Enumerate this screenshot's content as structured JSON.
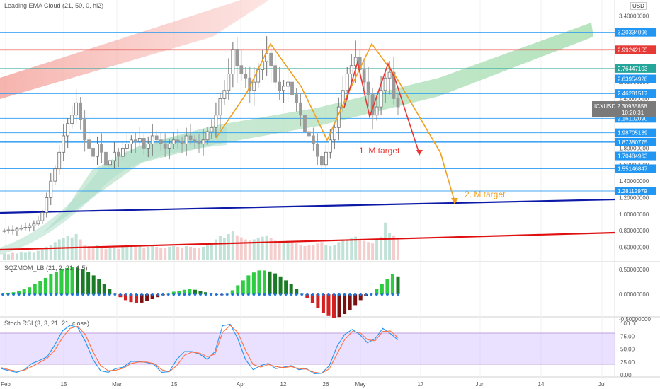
{
  "header": {
    "main_indicator": "Leading EMA Cloud (21, 50, 0, hl2)",
    "currency": "USD",
    "sqzmom_title": "SQZMOM_LB (21, 2, 21, 1.5)",
    "stoch_title": "Stoch RSI (3, 3, 21, 21, close)"
  },
  "colors": {
    "up_candle": "#6f6f6f",
    "down_candle": "#9a9a9a",
    "blue_level": "#2196f3",
    "red_level": "#e53935",
    "trendline_blue": "#0d1aa8",
    "trendline_red": "#e01010",
    "m1_pattern": "#e53935",
    "m2_pattern": "#f0a020",
    "squeeze_up": "#2ecc40",
    "squeeze_down": "#d42020",
    "stoch_k": "#2196f3",
    "stoch_d": "#ff7043",
    "stoch_band": "#d9c6ff"
  },
  "chart_data": [
    {
      "type": "candlestick",
      "symbol": "ICXUSD",
      "title": "Leading EMA Cloud (21, 50, 0, hl2)",
      "ylim": [
        0.45,
        3.45
      ],
      "x_labels": [
        "Feb",
        "15",
        "Mar",
        "15",
        "Apr",
        "12",
        "26",
        "May",
        "17",
        "Jun",
        "14",
        "Jul"
      ],
      "y_ticks": [
        "3.40000000",
        "3.00000000",
        "2.60000000",
        "2.40000000",
        "2.20000000",
        "1.80000000",
        "1.60000000",
        "1.40000000",
        "1.20000000",
        "1.00000000",
        "0.80000000",
        "0.60000000"
      ],
      "horizontal_levels": [
        {
          "value": "3.20334096",
          "color": "blue"
        },
        {
          "value": "2.99242155",
          "color": "red"
        },
        {
          "value": "2.76447103",
          "color": "teal"
        },
        {
          "value": "2.63954928",
          "color": "blue"
        },
        {
          "value": "2.46281517",
          "color": "blue"
        },
        {
          "value": "2.16102090",
          "color": "blue"
        },
        {
          "value": "1.98705139",
          "color": "blue"
        },
        {
          "value": "1.87380775",
          "color": "blue"
        },
        {
          "value": "1.70484963",
          "color": "blue"
        },
        {
          "value": "1.55146847",
          "color": "blue"
        },
        {
          "value": "1.28112979",
          "color": "blue"
        }
      ],
      "current_price": {
        "symbol": "ICXUSD",
        "value": "2.30935858",
        "countdown": "10:20:31"
      },
      "annotations": [
        "1. M target",
        "2. M target"
      ],
      "closes": [
        0.8,
        0.81,
        0.8,
        0.82,
        0.83,
        0.84,
        0.86,
        0.88,
        0.92,
        1.02,
        1.2,
        1.4,
        1.55,
        1.75,
        1.95,
        2.1,
        2.2,
        2.35,
        2.15,
        1.9,
        1.8,
        1.7,
        1.85,
        1.75,
        1.6,
        1.65,
        1.75,
        1.7,
        1.8,
        1.85,
        1.9,
        1.88,
        1.92,
        1.8,
        1.85,
        1.95,
        1.9,
        1.85,
        1.8,
        1.85,
        1.9,
        1.88,
        1.85,
        1.95,
        1.9,
        1.88,
        1.85,
        1.9,
        2.0,
        2.05,
        2.2,
        2.4,
        2.5,
        2.7,
        3.0,
        2.8,
        2.7,
        2.65,
        2.5,
        2.6,
        2.75,
        2.85,
        2.95,
        2.8,
        2.6,
        2.5,
        2.55,
        2.6,
        2.45,
        2.35,
        2.2,
        2.0,
        1.95,
        1.85,
        1.7,
        1.6,
        1.75,
        1.9,
        2.05,
        2.3,
        2.5,
        2.7,
        2.8,
        2.9,
        2.75,
        2.6,
        2.45,
        2.2,
        2.3,
        2.5,
        2.65,
        2.72,
        2.4,
        2.3
      ],
      "volumes": [
        0.09,
        0.08,
        0.1,
        0.09,
        0.11,
        0.1,
        0.12,
        0.1,
        0.13,
        0.15,
        0.19,
        0.22,
        0.26,
        0.3,
        0.32,
        0.35,
        0.33,
        0.38,
        0.3,
        0.22,
        0.2,
        0.18,
        0.22,
        0.19,
        0.16,
        0.17,
        0.18,
        0.16,
        0.19,
        0.2,
        0.22,
        0.21,
        0.2,
        0.18,
        0.19,
        0.2,
        0.19,
        0.18,
        0.17,
        0.19,
        0.2,
        0.19,
        0.18,
        0.2,
        0.19,
        0.18,
        0.17,
        0.19,
        0.22,
        0.25,
        0.3,
        0.35,
        0.32,
        0.38,
        0.42,
        0.36,
        0.33,
        0.3,
        0.28,
        0.3,
        0.32,
        0.34,
        0.36,
        0.32,
        0.28,
        0.26,
        0.27,
        0.28,
        0.26,
        0.24,
        0.22,
        0.2,
        0.21,
        0.22,
        0.24,
        0.26,
        0.22,
        0.2,
        0.22,
        0.26,
        0.28,
        0.3,
        0.32,
        0.34,
        0.3,
        0.28,
        0.26,
        0.24,
        0.3,
        0.34,
        0.55,
        0.4,
        0.36,
        0.32
      ]
    },
    {
      "type": "bar",
      "title": "SQZMOM_LB (21, 2, 21, 1.5)",
      "ylim": [
        -0.6,
        0.65
      ],
      "y_ticks": [
        "0.50000000",
        "0.00000000",
        "-0.50000000"
      ],
      "values": [
        0.02,
        0.03,
        0.04,
        0.06,
        0.1,
        0.14,
        0.2,
        0.26,
        0.33,
        0.4,
        0.45,
        0.5,
        0.53,
        0.55,
        0.54,
        0.5,
        0.45,
        0.38,
        0.3,
        0.2,
        0.1,
        0.02,
        -0.06,
        -0.12,
        -0.16,
        -0.18,
        -0.17,
        -0.14,
        -0.1,
        -0.06,
        -0.02,
        0.02,
        0.05,
        0.07,
        0.09,
        0.1,
        0.09,
        0.07,
        0.04,
        0.02,
        -0.01,
        -0.02,
        0.02,
        0.08,
        0.18,
        0.28,
        0.38,
        0.44,
        0.48,
        0.48,
        0.46,
        0.42,
        0.36,
        0.28,
        0.2,
        0.1,
        0.02,
        -0.08,
        -0.18,
        -0.28,
        -0.38,
        -0.44,
        -0.48,
        -0.46,
        -0.4,
        -0.32,
        -0.22,
        -0.12,
        -0.04,
        0.02,
        0.1,
        0.2,
        0.3,
        0.4,
        0.36
      ]
    },
    {
      "type": "line",
      "title": "Stoch RSI (3, 3, 21, 21, close)",
      "ylim": [
        -5,
        110
      ],
      "y_ticks": [
        "100.00",
        "75.00",
        "50.00",
        "25.00",
        "0.00"
      ],
      "band": [
        20,
        80
      ],
      "series": [
        {
          "key": "K",
          "values": [
            12,
            8,
            5,
            10,
            22,
            28,
            35,
            58,
            85,
            96,
            92,
            65,
            30,
            8,
            5,
            12,
            15,
            26,
            26,
            24,
            20,
            5,
            6,
            30,
            45,
            45,
            40,
            30,
            45,
            95,
            98,
            70,
            30,
            10,
            18,
            22,
            12,
            15,
            18,
            10,
            12,
            2,
            3,
            18,
            55,
            78,
            88,
            78,
            62,
            70,
            90,
            80,
            68
          ]
        },
        {
          "key": "D",
          "values": [
            14,
            10,
            7,
            9,
            16,
            24,
            32,
            48,
            72,
            90,
            94,
            78,
            45,
            18,
            8,
            9,
            13,
            22,
            25,
            25,
            22,
            10,
            6,
            18,
            38,
            44,
            42,
            35,
            40,
            82,
            96,
            82,
            48,
            20,
            15,
            20,
            16,
            14,
            16,
            12,
            11,
            5,
            3,
            12,
            40,
            68,
            84,
            82,
            68,
            66,
            84,
            85,
            72
          ]
        }
      ]
    }
  ]
}
